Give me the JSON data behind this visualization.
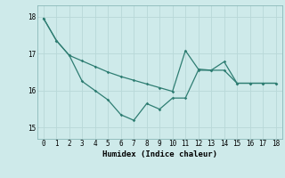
{
  "xlabel": "Humidex (Indice chaleur)",
  "bg_color": "#ceeaea",
  "line_color": "#2e7d72",
  "grid_color": "#b8d8d8",
  "xlim": [
    -0.5,
    18.5
  ],
  "ylim": [
    14.7,
    18.3
  ],
  "yticks": [
    15,
    16,
    17,
    18
  ],
  "xticks": [
    0,
    1,
    2,
    3,
    4,
    5,
    6,
    7,
    8,
    9,
    10,
    11,
    12,
    13,
    14,
    15,
    16,
    17,
    18
  ],
  "line1_x": [
    0,
    1,
    2,
    3,
    4,
    5,
    6,
    7,
    8,
    9,
    10,
    11,
    12,
    13,
    14,
    15,
    16,
    17,
    18
  ],
  "line1_y": [
    17.95,
    17.35,
    16.95,
    16.25,
    16.0,
    15.75,
    15.35,
    15.2,
    15.65,
    15.5,
    15.8,
    15.8,
    16.55,
    16.55,
    16.55,
    16.2,
    16.2,
    16.2,
    16.2
  ],
  "line2_x": [
    0,
    1,
    2,
    3,
    4,
    5,
    6,
    7,
    8,
    9,
    10,
    11,
    12,
    13,
    14,
    15,
    16,
    17,
    18
  ],
  "line2_y": [
    17.95,
    17.35,
    16.95,
    16.8,
    16.65,
    16.5,
    16.38,
    16.28,
    16.18,
    16.08,
    15.98,
    17.08,
    16.58,
    16.55,
    16.78,
    16.2,
    16.2,
    16.2,
    16.2
  ]
}
